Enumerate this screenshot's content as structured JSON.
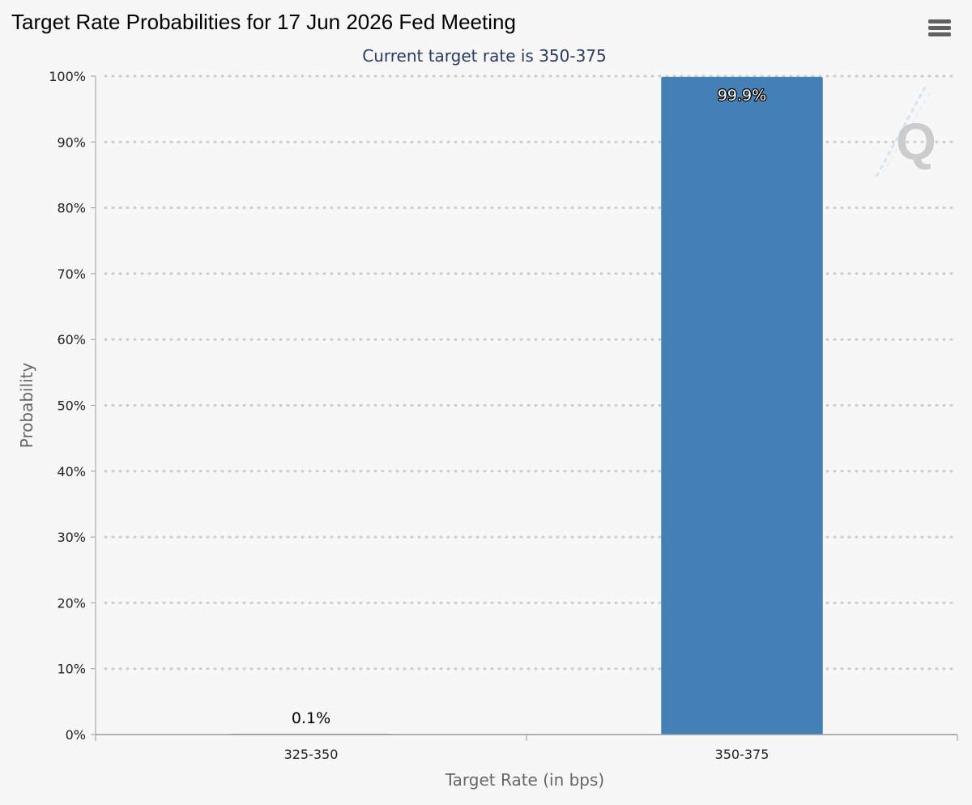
{
  "header": {
    "title": "Target Rate Probabilities for 17 Jun 2026 Fed Meeting",
    "subtitle": "Current target rate is 350-375",
    "menu_icon": "hamburger-menu-icon"
  },
  "watermark": {
    "text": "Q",
    "icon": "cme-quikstrike-logo"
  },
  "colors": {
    "bar": "#4380b5",
    "grid": "#cccccc",
    "subtitle": "#2a3a66",
    "background": "#f7f7f7"
  },
  "chart_data": {
    "type": "bar",
    "title": "Target Rate Probabilities for 17 Jun 2026 Fed Meeting",
    "subtitle": "Current target rate is 350-375",
    "xlabel": "Target Rate (in bps)",
    "ylabel": "Probability",
    "categories": [
      "325-350",
      "350-375"
    ],
    "values": [
      0.1,
      99.9
    ],
    "data_labels": [
      "0.1%",
      "99.9%"
    ],
    "ylim": [
      0,
      100
    ],
    "yticks": [
      0,
      10,
      20,
      30,
      40,
      50,
      60,
      70,
      80,
      90,
      100
    ],
    "ytick_labels": [
      "0%",
      "10%",
      "20%",
      "30%",
      "40%",
      "50%",
      "60%",
      "70%",
      "80%",
      "90%",
      "100%"
    ],
    "grid": true,
    "grid_style": "dotted",
    "legend": false
  }
}
